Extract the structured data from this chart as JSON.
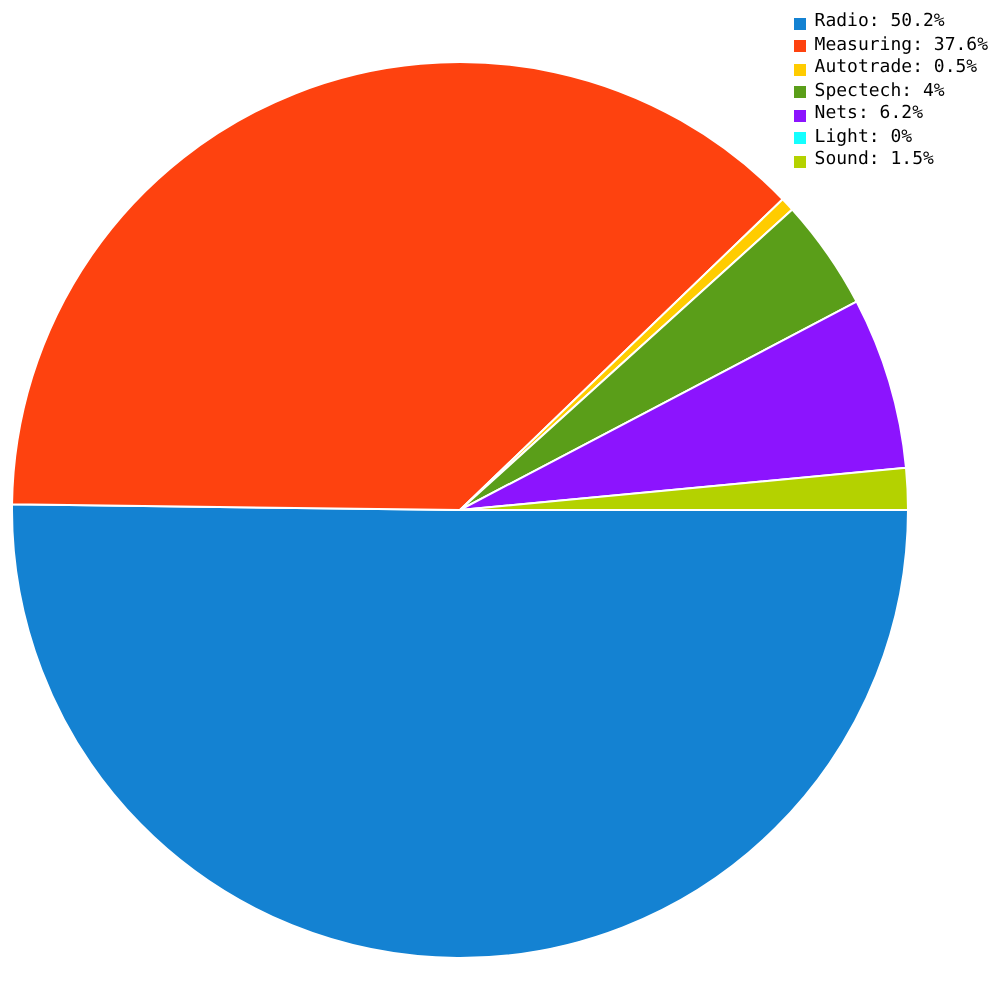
{
  "chart_data": {
    "type": "pie",
    "categories": [
      "Radio: 50.2%",
      "Measuring: 37.6%",
      "Autotrade: 0.5%",
      "Spectech: 4%",
      "Nets: 6.2%",
      "Light: 0%",
      "Sound: 1.5%"
    ],
    "values": [
      50.2,
      37.6,
      0.5,
      4,
      6.2,
      0,
      1.5
    ],
    "colors": [
      "#1482d2",
      "#fe420f",
      "#ffcc00",
      "#5a9e19",
      "#8c14fe",
      "#14ffff",
      "#b4d200"
    ],
    "legend": "top right"
  }
}
